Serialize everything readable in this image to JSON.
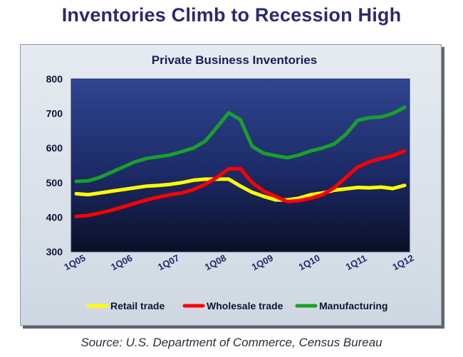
{
  "title": "Inventories Climb to Recession High",
  "source": "Source: U.S. Department of Commerce, Census Bureau",
  "chart_data": {
    "type": "line",
    "title": "Private Business Inventories",
    "xlabel": "",
    "ylabel": "",
    "ylim": [
      300,
      800
    ],
    "yticks": [
      300,
      400,
      500,
      600,
      700,
      800
    ],
    "xtick_labels": [
      "1Q05",
      "1Q06",
      "1Q07",
      "1Q08",
      "1Q09",
      "1Q10",
      "1Q11",
      "1Q12"
    ],
    "x": [
      "1Q05",
      "2Q05",
      "3Q05",
      "4Q05",
      "1Q06",
      "2Q06",
      "3Q06",
      "4Q06",
      "1Q07",
      "2Q07",
      "3Q07",
      "4Q07",
      "1Q08",
      "2Q08",
      "3Q08",
      "4Q08",
      "1Q09",
      "2Q09",
      "3Q09",
      "4Q09",
      "1Q10",
      "2Q10",
      "3Q10",
      "4Q10",
      "1Q11",
      "2Q11",
      "3Q11",
      "4Q11",
      "1Q12"
    ],
    "grid": false,
    "legend_position": "bottom",
    "series": [
      {
        "name": "Retail trade",
        "color": "#ffff00",
        "values": [
          468,
          465,
          470,
          475,
          480,
          485,
          490,
          492,
          495,
          500,
          507,
          510,
          510,
          510,
          490,
          472,
          460,
          450,
          450,
          455,
          465,
          470,
          478,
          482,
          486,
          485,
          487,
          483,
          492
        ]
      },
      {
        "name": "Wholesale trade",
        "color": "#ff0000",
        "values": [
          402,
          405,
          412,
          420,
          430,
          440,
          450,
          458,
          465,
          470,
          480,
          495,
          515,
          540,
          540,
          500,
          475,
          460,
          445,
          448,
          455,
          465,
          485,
          515,
          545,
          560,
          570,
          578,
          592
        ]
      },
      {
        "name": "Manufacturing",
        "color": "#18a02a",
        "values": [
          504,
          505,
          515,
          530,
          545,
          560,
          570,
          575,
          580,
          590,
          600,
          620,
          660,
          702,
          682,
          605,
          585,
          578,
          572,
          580,
          592,
          600,
          612,
          640,
          680,
          688,
          690,
          700,
          718
        ]
      }
    ]
  }
}
